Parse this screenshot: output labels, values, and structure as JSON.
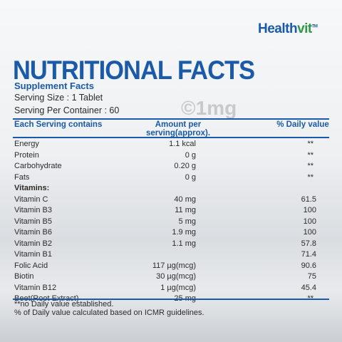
{
  "brand": {
    "part1": "Health",
    "part2": "vit",
    "mark": "TM"
  },
  "header": {
    "title": "NUTRITIONAL FACTS",
    "subtitle": "Supplement Facts",
    "serving_size": "Serving Size : 1 Tablet",
    "servings_per_container": "Serving Per Container : 60"
  },
  "watermark": "©1mg",
  "table": {
    "columns": [
      "Each Serving contains",
      "Amount per serving(approx).",
      "% Daily value"
    ],
    "rows": [
      {
        "name": "Energy",
        "amount": "1.1 kcal",
        "daily": "**"
      },
      {
        "name": "Protein",
        "amount": "0 g",
        "daily": "**"
      },
      {
        "name": "Carbohydrate",
        "amount": "0.20 g",
        "daily": "**"
      },
      {
        "name": "Fats",
        "amount": "0 g",
        "daily": "**"
      },
      {
        "name": "Vitamins:"
      },
      {
        "name": "Vitamin C",
        "amount": "40 mg",
        "daily": "61.5"
      },
      {
        "name": "Vitamin B3",
        "amount": "11 mg",
        "daily": "100"
      },
      {
        "name": "Vitamin B5",
        "amount": "5 mg",
        "daily": "100"
      },
      {
        "name": "Vitamin B6",
        "amount": "1.9 mg",
        "daily": "100"
      },
      {
        "name": "Vitamin B2",
        "amount": "1.1 mg",
        "daily": "57.8"
      },
      {
        "name": "Vitamin B1",
        "daily": "71.4"
      },
      {
        "name": "Folic Acid",
        "amount": "117 µg(mcg)",
        "daily": "90.6"
      },
      {
        "name": "Biotin",
        "amount": "30 µg(mcg)",
        "daily": "75"
      },
      {
        "name": "Vitamin B12",
        "amount": "1 µg(mcg)",
        "daily": "45.4"
      },
      {
        "name": "Beet(Root Extract)",
        "amount": "25 mg",
        "daily": "**"
      }
    ]
  },
  "footnotes": [
    "**no Daily value established.",
    "% of Daily value calculated based on ICMR guidelines."
  ]
}
